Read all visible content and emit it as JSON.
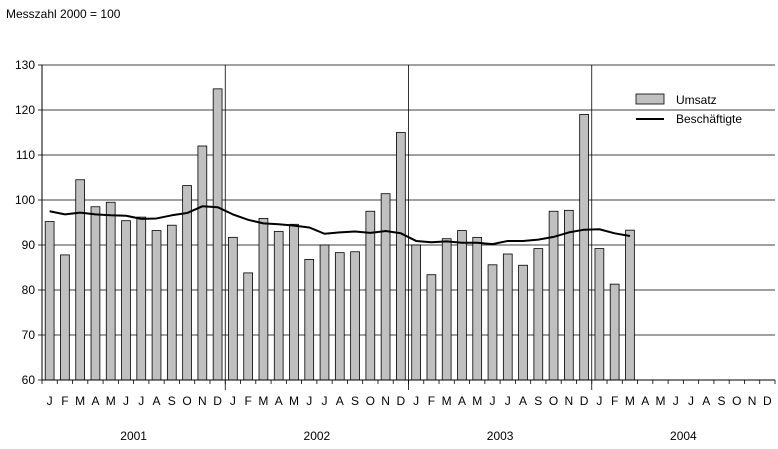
{
  "chart_data": {
    "type": "bar",
    "subtitle": "Messzahl 2000 = 100",
    "ylim": [
      60,
      130
    ],
    "yticks": [
      60,
      70,
      80,
      90,
      100,
      110,
      120,
      130
    ],
    "grid": true,
    "legend_position": "top-right",
    "month_labels": [
      "J",
      "F",
      "M",
      "A",
      "M",
      "J",
      "J",
      "A",
      "S",
      "O",
      "N",
      "D",
      "J",
      "F",
      "M",
      "A",
      "M",
      "J",
      "J",
      "A",
      "S",
      "O",
      "N",
      "D",
      "J",
      "F",
      "M",
      "A",
      "M",
      "J",
      "J",
      "A",
      "S",
      "O",
      "N",
      "D",
      "J",
      "F",
      "M",
      "A",
      "M",
      "J",
      "J",
      "A",
      "S",
      "O",
      "N",
      "D"
    ],
    "years": [
      "2001",
      "2002",
      "2003",
      "2004"
    ],
    "series": [
      {
        "name": "Umsatz",
        "kind": "bar",
        "color": "#c0c0c0",
        "values": [
          95.2,
          87.8,
          104.5,
          98.5,
          99.5,
          95.4,
          96.2,
          93.2,
          94.4,
          103.2,
          112.0,
          124.7,
          91.7,
          83.8,
          95.9,
          93.0,
          94.6,
          86.8,
          90.0,
          88.3,
          88.5,
          97.5,
          101.4,
          115.0,
          90.0,
          83.4,
          91.4,
          93.2,
          91.7,
          85.6,
          88.0,
          85.5,
          89.2,
          97.5,
          97.7,
          119.0,
          89.2,
          81.3,
          93.3
        ]
      },
      {
        "name": "Beschäftigte",
        "kind": "line",
        "color": "#000000",
        "values": [
          97.5,
          96.8,
          97.2,
          96.8,
          96.6,
          96.5,
          95.8,
          95.9,
          96.6,
          97.1,
          98.6,
          98.4,
          96.8,
          95.6,
          94.8,
          94.6,
          94.3,
          93.9,
          92.5,
          92.8,
          93.0,
          92.7,
          93.1,
          92.6,
          90.9,
          90.6,
          90.8,
          90.5,
          90.5,
          90.2,
          90.9,
          90.9,
          91.2,
          91.8,
          92.8,
          93.4,
          93.5,
          92.6,
          92.0
        ]
      }
    ]
  }
}
